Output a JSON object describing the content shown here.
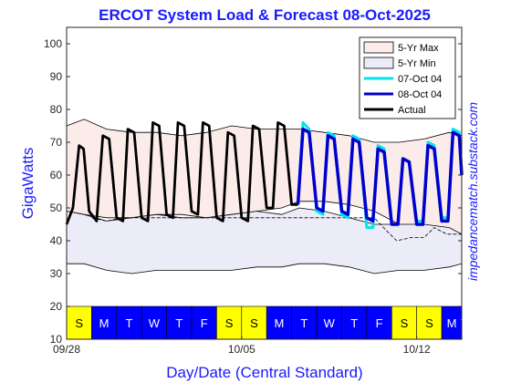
{
  "chart_data": {
    "type": "line",
    "title": "ERCOT System Load & Forecast 08-Oct-2025",
    "xlabel": "Day/Date (Central Standard)",
    "ylabel": "GigaWatts",
    "ylim": [
      10,
      105
    ],
    "yticks": [
      10,
      20,
      30,
      40,
      50,
      60,
      70,
      80,
      90,
      100
    ],
    "xlim": [
      0,
      15.8
    ],
    "xticks": [
      {
        "day": 0,
        "label": "09/28"
      },
      {
        "day": 7,
        "label": "10/05"
      },
      {
        "day": 14,
        "label": "10/12"
      }
    ],
    "grid": false,
    "legend_position": "top-right",
    "legend": [
      {
        "label": "5-Yr Max",
        "kind": "area",
        "color": "#fbecea"
      },
      {
        "label": "5-Yr Min",
        "kind": "area",
        "color": "#ececf8"
      },
      {
        "label": "07-Oct 04",
        "kind": "line",
        "color": "#00e5ee"
      },
      {
        "label": "08-Oct 04",
        "kind": "line",
        "color": "#0000cc"
      },
      {
        "label": "Actual",
        "kind": "line",
        "color": "#000000"
      }
    ],
    "five_year_max": {
      "days": [
        0,
        0.7,
        1.6,
        2.6,
        3.6,
        4.6,
        5.6,
        6.6,
        7.6,
        8.6,
        9.3,
        10.3,
        11.3,
        12.3,
        13.3,
        14.3,
        15.3,
        15.8
      ],
      "upper": [
        75,
        77,
        74,
        73,
        73,
        72,
        73,
        75,
        74,
        74,
        74,
        73,
        72,
        70,
        70,
        71,
        73,
        72
      ],
      "lower": [
        49,
        48,
        47,
        47,
        48,
        48,
        47,
        48,
        49,
        50,
        52,
        52,
        51,
        49,
        45,
        44,
        43,
        42
      ]
    },
    "five_year_min": {
      "days": [
        0,
        0.7,
        1.6,
        2.6,
        3.6,
        4.6,
        5.6,
        6.6,
        7.6,
        8.6,
        9.3,
        10.3,
        11.3,
        12.3,
        13.3,
        14.3,
        15.3,
        15.8
      ],
      "upper": [
        49,
        48,
        46,
        47,
        48,
        47,
        47,
        48,
        49,
        48,
        50,
        49,
        47,
        45,
        45,
        45,
        44,
        42
      ],
      "lower": [
        33,
        33,
        31,
        30,
        31,
        31,
        31,
        31,
        32,
        32,
        33,
        33,
        32,
        30,
        31,
        31,
        32,
        33
      ]
    },
    "actual": {
      "days": [
        0.0,
        0.25,
        0.5,
        0.68,
        0.9,
        1.2,
        1.45,
        1.7,
        2.0,
        2.25,
        2.45,
        2.7,
        3.0,
        3.25,
        3.45,
        3.7,
        4.0,
        4.25,
        4.45,
        4.7,
        5.0,
        5.25,
        5.45,
        5.7,
        6.0,
        6.25,
        6.45,
        6.7,
        7.0,
        7.25,
        7.45,
        7.7,
        8.0,
        8.25,
        8.45,
        8.7,
        9.0,
        9.25
      ],
      "values": [
        45,
        50,
        69,
        68,
        49,
        46,
        72,
        71,
        47,
        46,
        74,
        73,
        47,
        46,
        76,
        75,
        48,
        47,
        76,
        75,
        49,
        48,
        76,
        75,
        47,
        46,
        73,
        72,
        47,
        46,
        75,
        74,
        50,
        50,
        76,
        75,
        51,
        51
      ]
    },
    "forecast_08oct": {
      "days": [
        9.25,
        9.45,
        9.7,
        10.0,
        10.25,
        10.45,
        10.7,
        11.0,
        11.25,
        11.45,
        11.7,
        12.0,
        12.25,
        12.45,
        12.7,
        13.0,
        13.25,
        13.45,
        13.7,
        14.0,
        14.25,
        14.45,
        14.7,
        15.0,
        15.25,
        15.45,
        15.7,
        15.8
      ],
      "values": [
        51,
        74,
        73,
        50,
        49,
        72,
        71,
        49,
        48,
        71,
        70,
        47,
        46,
        68,
        67,
        45,
        45,
        65,
        64,
        45,
        45,
        69,
        68,
        46,
        46,
        73,
        72,
        60
      ]
    },
    "forecast_07oct": {
      "days": [
        9.25,
        9.45,
        9.7,
        10.0,
        10.25,
        10.45,
        10.7,
        11.0,
        11.25,
        11.45,
        11.7,
        12.0,
        12.25,
        12.45,
        12.7,
        13.0,
        13.25,
        13.45,
        13.7,
        14.0,
        14.25,
        14.45,
        14.7,
        15.0,
        15.25,
        15.45,
        15.7,
        15.8
      ],
      "values": [
        51,
        76,
        74,
        49,
        48,
        73,
        72,
        48,
        47,
        72,
        71,
        44,
        44,
        69,
        68,
        45,
        45,
        65,
        64,
        46,
        46,
        70,
        69,
        47,
        47,
        74,
        73,
        61
      ]
    },
    "prior_forecast_dashed": {
      "days": [
        1.0,
        1.6,
        2.2,
        12.3,
        12.8,
        13.2,
        13.8,
        14.3,
        14.7,
        15.2,
        15.8
      ],
      "values": [
        47,
        46,
        47,
        47,
        43,
        40,
        41,
        41,
        44,
        42,
        42
      ]
    },
    "day_strip": {
      "letters": [
        "S",
        "M",
        "T",
        "W",
        "T",
        "F",
        "S",
        "S",
        "M",
        "T",
        "W",
        "T",
        "F",
        "S",
        "S",
        "M",
        "T"
      ],
      "weekend_color": "#ffff00",
      "weekday_color": "#0000ff",
      "weekend_text_color": "#000000",
      "weekday_text_color": "#ffffff"
    }
  },
  "watermark": "impedancematch.substack.com"
}
